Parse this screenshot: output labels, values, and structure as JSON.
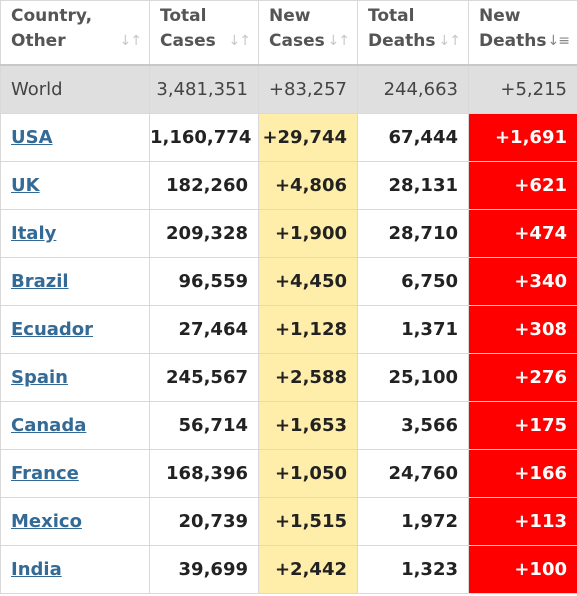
{
  "colors": {
    "new_cases_bg": "#ffeeaa",
    "new_deaths_bg": "#ff0000",
    "link": "#336a96",
    "world_bg": "#dfdfdf"
  },
  "headers": [
    {
      "line1": "Country,",
      "line2": "Other",
      "sort_icon": "sort-updown-icon"
    },
    {
      "line1": "Total",
      "line2": "Cases",
      "sort_icon": "sort-updown-icon"
    },
    {
      "line1": "New",
      "line2": "Cases",
      "sort_icon": "sort-updown-icon"
    },
    {
      "line1": "Total",
      "line2": "Deaths",
      "sort_icon": "sort-updown-icon"
    },
    {
      "line1": "New",
      "line2": "Deaths",
      "sort_icon": "sort-descending-icon"
    }
  ],
  "world": {
    "country": "World",
    "total_cases": "3,481,351",
    "new_cases": "+83,257",
    "total_deaths": "244,663",
    "new_deaths": "+5,215"
  },
  "rows": [
    {
      "country": "USA",
      "total_cases": "1,160,774",
      "new_cases": "+29,744",
      "total_deaths": "67,444",
      "new_deaths": "+1,691"
    },
    {
      "country": "UK",
      "total_cases": "182,260",
      "new_cases": "+4,806",
      "total_deaths": "28,131",
      "new_deaths": "+621"
    },
    {
      "country": "Italy",
      "total_cases": "209,328",
      "new_cases": "+1,900",
      "total_deaths": "28,710",
      "new_deaths": "+474"
    },
    {
      "country": "Brazil",
      "total_cases": "96,559",
      "new_cases": "+4,450",
      "total_deaths": "6,750",
      "new_deaths": "+340"
    },
    {
      "country": "Ecuador",
      "total_cases": "27,464",
      "new_cases": "+1,128",
      "total_deaths": "1,371",
      "new_deaths": "+308"
    },
    {
      "country": "Spain",
      "total_cases": "245,567",
      "new_cases": "+2,588",
      "total_deaths": "25,100",
      "new_deaths": "+276"
    },
    {
      "country": "Canada",
      "total_cases": "56,714",
      "new_cases": "+1,653",
      "total_deaths": "3,566",
      "new_deaths": "+175"
    },
    {
      "country": "France",
      "total_cases": "168,396",
      "new_cases": "+1,050",
      "total_deaths": "24,760",
      "new_deaths": "+166"
    },
    {
      "country": "Mexico",
      "total_cases": "20,739",
      "new_cases": "+1,515",
      "total_deaths": "1,972",
      "new_deaths": "+113"
    },
    {
      "country": "India",
      "total_cases": "39,699",
      "new_cases": "+2,442",
      "total_deaths": "1,323",
      "new_deaths": "+100"
    }
  ]
}
